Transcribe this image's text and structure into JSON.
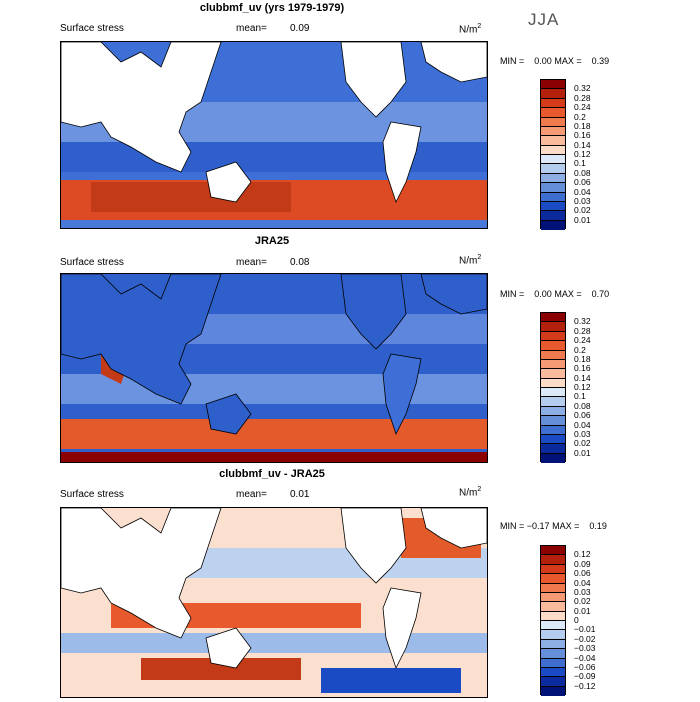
{
  "season": "JJA",
  "panels": [
    {
      "title": "clubbmf_uv (yrs 1979-1979)",
      "subtitle": "Surface stress",
      "mean_label": "mean=",
      "mean_value": "0.09",
      "units": "N/m",
      "units_exp": "2",
      "min_label": "MIN =",
      "min_value": "0.00",
      "max_label": "MAX =",
      "max_value": "0.39",
      "colorbar": {
        "levels": [
          "0.32",
          "0.28",
          "0.24",
          "0.2",
          "0.18",
          "0.16",
          "0.14",
          "0.12",
          "0.1",
          "0.08",
          "0.06",
          "0.04",
          "0.03",
          "0.02",
          "0.01"
        ],
        "colors": [
          "#8b0000",
          "#b3200c",
          "#d43b1a",
          "#e8592d",
          "#ef7a4e",
          "#f59a74",
          "#f9bb9c",
          "#fcdcc6",
          "#dbe8f7",
          "#b4cdee",
          "#8caee4",
          "#6590d9",
          "#3e6ed0",
          "#1a4bc4",
          "#0a2a9e",
          "#001277"
        ]
      }
    },
    {
      "title": "JRA25",
      "subtitle": "Surface stress",
      "mean_label": "mean=",
      "mean_value": "0.08",
      "units": "N/m",
      "units_exp": "2",
      "min_label": "MIN =",
      "min_value": "0.00",
      "max_label": "MAX =",
      "max_value": "0.70",
      "colorbar": {
        "levels": [
          "0.32",
          "0.28",
          "0.24",
          "0.2",
          "0.18",
          "0.16",
          "0.14",
          "0.12",
          "0.1",
          "0.08",
          "0.06",
          "0.04",
          "0.03",
          "0.02",
          "0.01"
        ],
        "colors": [
          "#8b0000",
          "#b3200c",
          "#d43b1a",
          "#e8592d",
          "#ef7a4e",
          "#f59a74",
          "#f9bb9c",
          "#fcdcc6",
          "#dbe8f7",
          "#b4cdee",
          "#8caee4",
          "#6590d9",
          "#3e6ed0",
          "#1a4bc4",
          "#0a2a9e",
          "#001277"
        ]
      }
    },
    {
      "title": "clubbmf_uv - JRA25",
      "subtitle": "Surface stress",
      "mean_label": "mean=",
      "mean_value": "0.01",
      "units": "N/m",
      "units_exp": "2",
      "min_label": "MIN =",
      "min_value": "−0.17",
      "max_label": "MAX =",
      "max_value": "0.19",
      "colorbar": {
        "levels": [
          "0.12",
          "0.09",
          "0.06",
          "0.04",
          "0.03",
          "0.02",
          "0.01",
          "0",
          "−0.01",
          "−0.02",
          "−0.03",
          "−0.04",
          "−0.06",
          "−0.09",
          "−0.12"
        ],
        "colors": [
          "#8b0000",
          "#b3200c",
          "#d43b1a",
          "#e8592d",
          "#ef7a4e",
          "#f59a74",
          "#f9bb9c",
          "#fcdcc6",
          "#dbe8f7",
          "#b4cdee",
          "#8caee4",
          "#6590d9",
          "#3e6ed0",
          "#1a4bc4",
          "#0a2a9e",
          "#001277"
        ]
      }
    }
  ],
  "chart_data": [
    {
      "type": "heatmap",
      "title": "clubbmf_uv (yrs 1979-1979)",
      "variable": "Surface stress",
      "units": "N/m2",
      "season": "JJA",
      "mean": 0.09,
      "min": 0.0,
      "max": 0.39,
      "contour_levels": [
        0.01,
        0.02,
        0.03,
        0.04,
        0.06,
        0.08,
        0.1,
        0.12,
        0.14,
        0.16,
        0.18,
        0.2,
        0.24,
        0.28,
        0.32
      ]
    },
    {
      "type": "heatmap",
      "title": "JRA25",
      "variable": "Surface stress",
      "units": "N/m2",
      "season": "JJA",
      "mean": 0.08,
      "min": 0.0,
      "max": 0.7,
      "contour_levels": [
        0.01,
        0.02,
        0.03,
        0.04,
        0.06,
        0.08,
        0.1,
        0.12,
        0.14,
        0.16,
        0.18,
        0.2,
        0.24,
        0.28,
        0.32
      ]
    },
    {
      "type": "heatmap",
      "title": "clubbmf_uv - JRA25",
      "variable": "Surface stress",
      "units": "N/m2",
      "season": "JJA",
      "mean": 0.01,
      "min": -0.17,
      "max": 0.19,
      "contour_levels": [
        -0.12,
        -0.09,
        -0.06,
        -0.04,
        -0.03,
        -0.02,
        -0.01,
        0,
        0.01,
        0.02,
        0.03,
        0.04,
        0.06,
        0.09,
        0.12
      ]
    }
  ]
}
